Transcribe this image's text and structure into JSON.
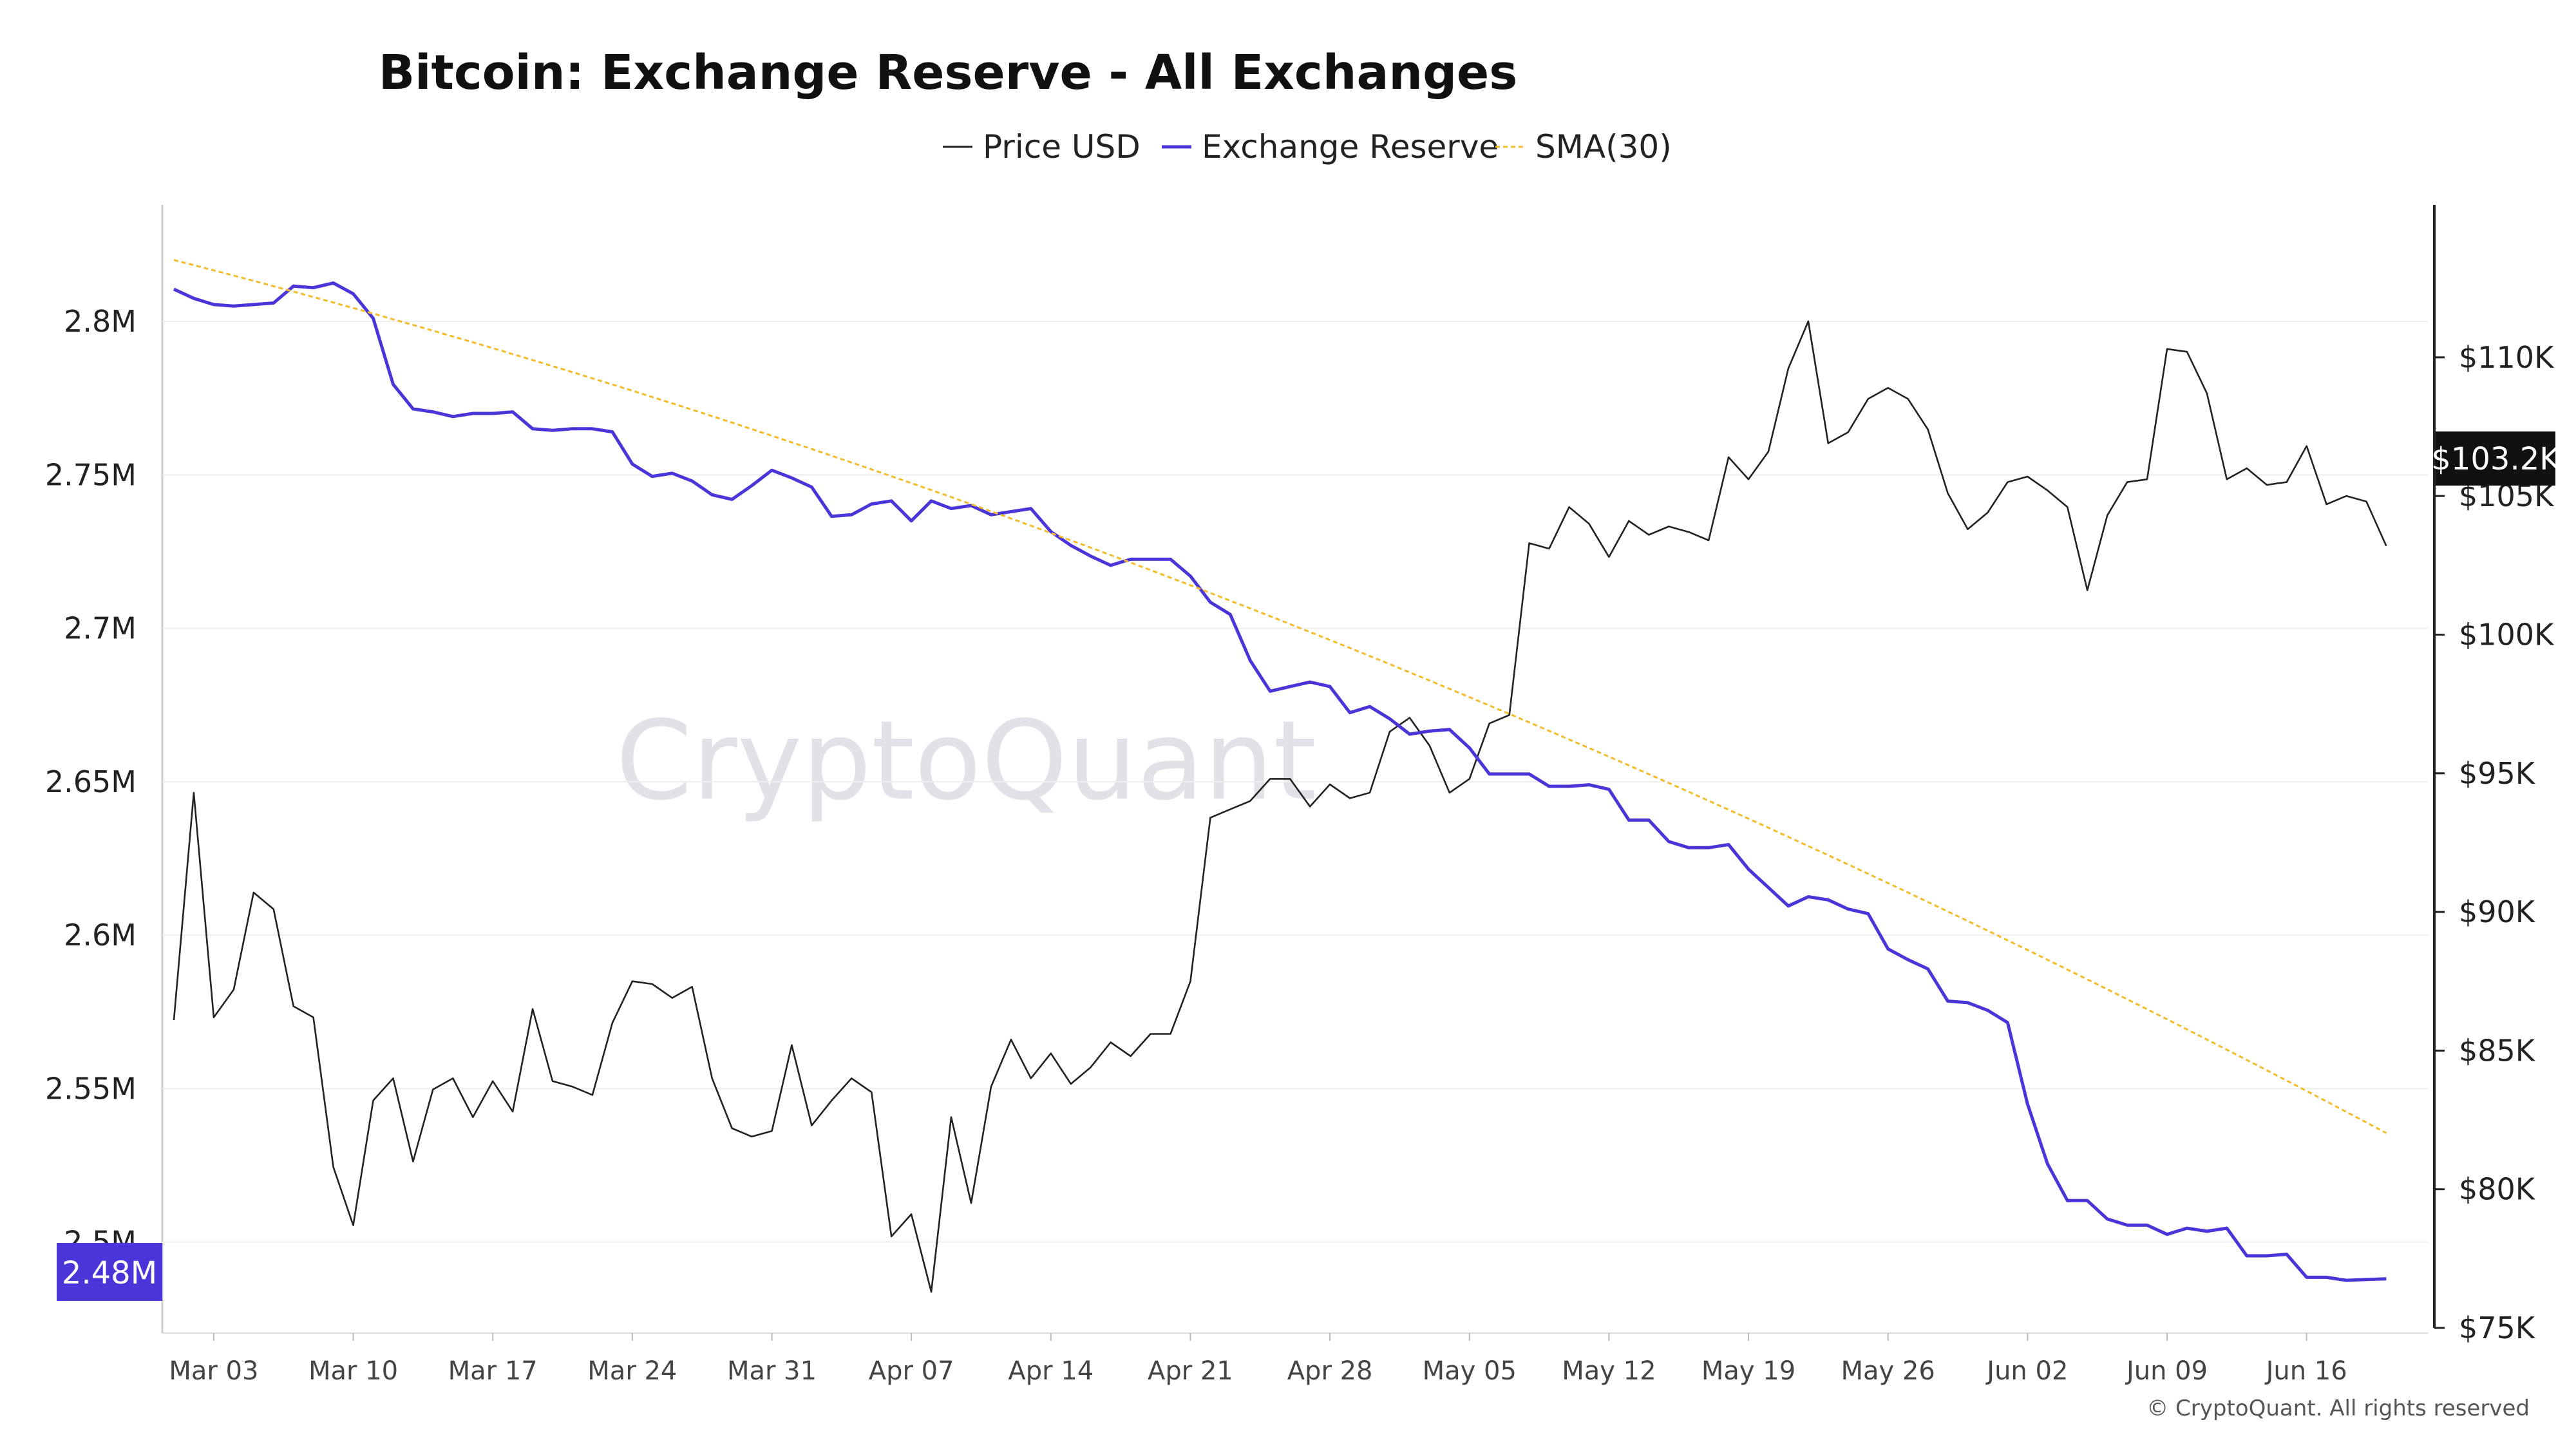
{
  "chart_data": {
    "type": "line",
    "title": "Bitcoin: Exchange Reserve - All Exchanges",
    "watermark": "CryptoQuant",
    "copyright": "© CryptoQuant. All rights reserved",
    "x_ticks": [
      "Mar 03",
      "Mar 10",
      "Mar 17",
      "Mar 24",
      "Mar 31",
      "Apr 07",
      "Apr 14",
      "Apr 21",
      "Apr 28",
      "May 05",
      "May 12",
      "May 19",
      "May 26",
      "Jun 02",
      "Jun 09",
      "Jun 16"
    ],
    "x_start": "Mar 01",
    "left_axis": {
      "ticks": [
        "2.5M",
        "2.55M",
        "2.6M",
        "2.65M",
        "2.7M",
        "2.75M",
        "2.8M"
      ],
      "tick_values": [
        2.5,
        2.55,
        2.6,
        2.65,
        2.7,
        2.75,
        2.8
      ],
      "range": [
        2.472,
        2.838
      ],
      "unit": "M BTC"
    },
    "right_axis": {
      "ticks": [
        "$75K",
        "$80K",
        "$85K",
        "$90K",
        "$95K",
        "$100K",
        "$105K",
        "$110K"
      ],
      "tick_values": [
        75,
        80,
        85,
        90,
        95,
        100,
        105,
        110
      ],
      "range": [
        75,
        115.5
      ],
      "unit": "$K"
    },
    "badges": {
      "reserve": "2.48M",
      "price": "$103.2K"
    },
    "series": [
      {
        "name": "Price USD",
        "axis": "right",
        "color": "#222222",
        "values": [
          86.1,
          94.3,
          86.2,
          87.2,
          90.7,
          90.1,
          86.6,
          86.2,
          80.8,
          78.7,
          83.2,
          84.0,
          81.0,
          83.6,
          84.0,
          82.6,
          83.9,
          82.8,
          86.5,
          83.9,
          83.7,
          83.4,
          86.0,
          87.5,
          87.4,
          86.9,
          87.3,
          84.0,
          82.2,
          81.9,
          82.1,
          85.2,
          82.3,
          83.2,
          84.0,
          83.5,
          78.3,
          79.1,
          76.3,
          82.6,
          79.5,
          83.7,
          85.4,
          84.0,
          84.9,
          83.8,
          84.4,
          85.3,
          84.8,
          85.6,
          85.6,
          87.5,
          93.4,
          93.7,
          94.0,
          94.8,
          94.8,
          93.8,
          94.6,
          94.1,
          94.3,
          96.5,
          97.0,
          96.0,
          94.3,
          94.8,
          96.8,
          97.1,
          103.3,
          103.1,
          104.6,
          104.0,
          102.8,
          104.1,
          103.6,
          103.9,
          103.7,
          103.4,
          106.4,
          105.6,
          106.6,
          109.6,
          111.3,
          106.9,
          107.3,
          108.5,
          108.9,
          108.5,
          107.4,
          105.1,
          103.8,
          104.4,
          105.5,
          105.7,
          105.2,
          104.6,
          101.6,
          104.3,
          105.5,
          105.6,
          110.3,
          110.2,
          108.7,
          105.6,
          106.0,
          105.4,
          105.5,
          106.8,
          104.7,
          105.0,
          104.8,
          103.2
        ]
      },
      {
        "name": "Exchange Reserve",
        "axis": "left",
        "color": "#4a35d8",
        "values": [
          2.8105,
          2.8075,
          2.8055,
          2.805,
          2.8055,
          2.806,
          2.8115,
          2.811,
          2.8125,
          2.809,
          2.801,
          2.7795,
          2.7715,
          2.7705,
          2.769,
          2.77,
          2.77,
          2.7705,
          2.765,
          2.7645,
          2.765,
          2.765,
          2.764,
          2.7535,
          2.7495,
          2.7505,
          2.748,
          2.7435,
          2.742,
          2.7465,
          2.7515,
          2.749,
          2.746,
          2.7365,
          2.737,
          2.7405,
          2.7415,
          2.735,
          2.7415,
          2.739,
          2.74,
          2.737,
          2.738,
          2.739,
          2.7315,
          2.727,
          2.7235,
          2.7205,
          2.7225,
          2.7225,
          2.7225,
          2.717,
          2.7085,
          2.7045,
          2.6895,
          2.6795,
          2.681,
          2.6825,
          2.681,
          2.6725,
          2.6745,
          2.6705,
          2.6655,
          2.6665,
          2.667,
          2.661,
          2.6525,
          2.6525,
          2.6525,
          2.6485,
          2.6485,
          2.649,
          2.6475,
          2.6375,
          2.6375,
          2.6305,
          2.6285,
          2.6285,
          2.6295,
          2.6215,
          2.6155,
          2.6095,
          2.6125,
          2.6115,
          2.6085,
          2.607,
          2.5955,
          2.592,
          2.589,
          2.5785,
          2.578,
          2.5755,
          2.5715,
          2.545,
          2.5255,
          2.5135,
          2.5135,
          2.5075,
          2.5055,
          2.5055,
          2.5025,
          2.5045,
          2.5035,
          2.5045,
          2.4955,
          2.4955,
          2.496,
          2.4885,
          2.4885,
          2.4875,
          2.4878,
          2.488
        ]
      },
      {
        "name": "SMA(30)",
        "axis": "left",
        "color": "#f2bc2c",
        "start": 2.82,
        "end": 2.5355,
        "dashed": true
      }
    ]
  }
}
